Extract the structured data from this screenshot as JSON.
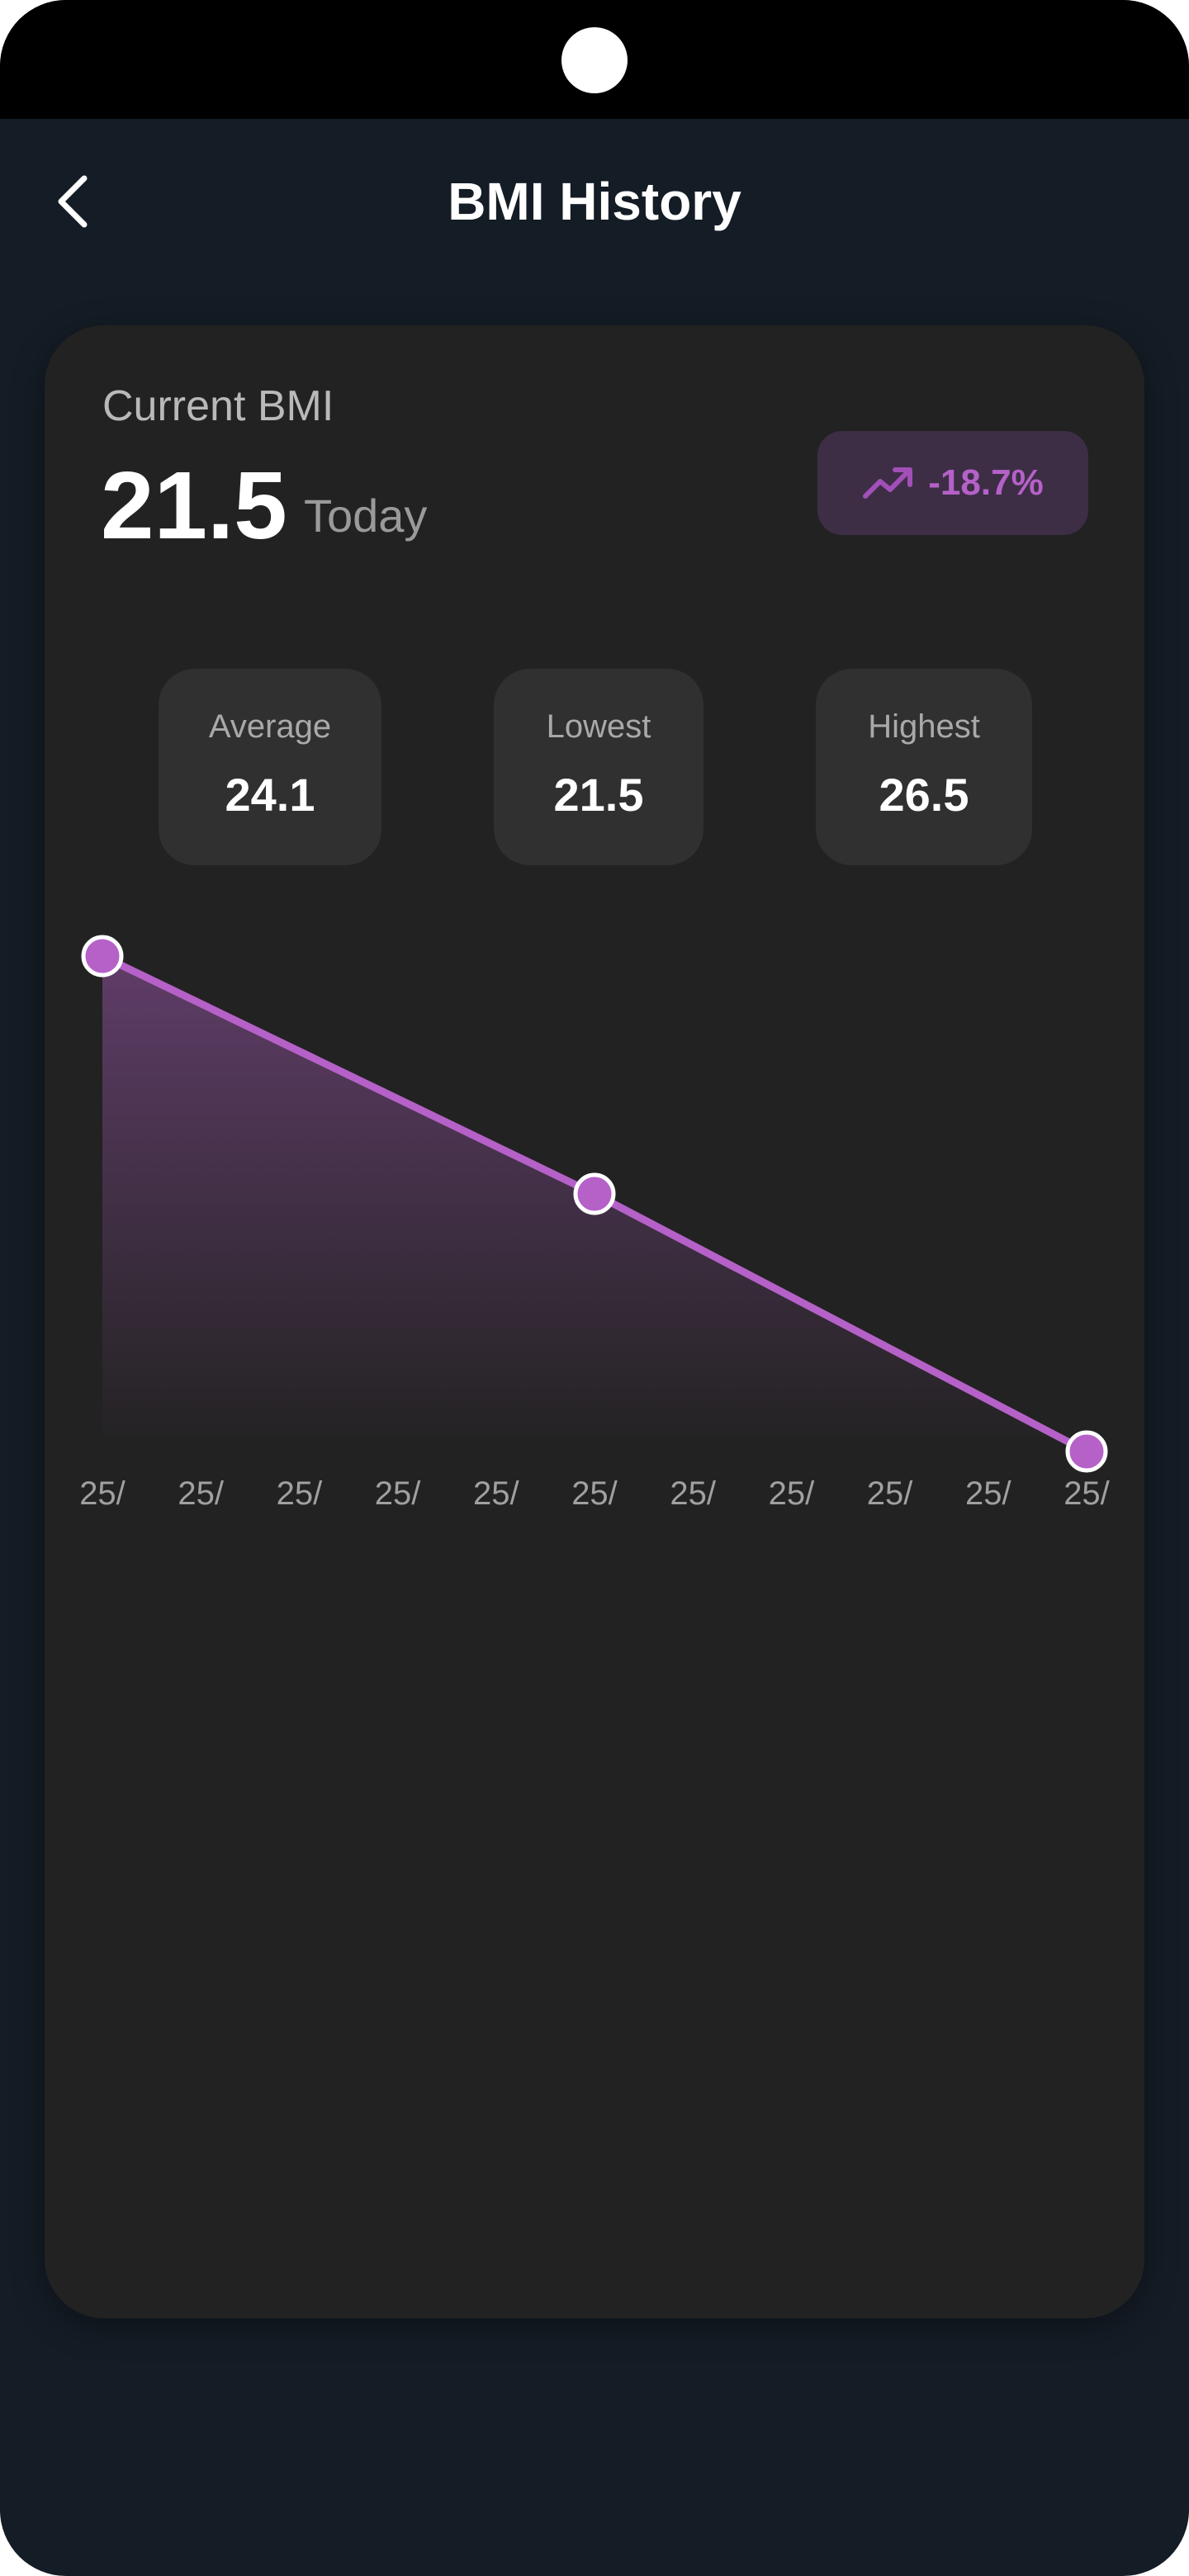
{
  "header": {
    "title": "BMI History",
    "back_icon": "chevron-left-icon"
  },
  "summary": {
    "label": "Current BMI",
    "value": "21.5",
    "period": "Today",
    "change": {
      "text": "-18.7%",
      "icon": "trending-up-icon"
    }
  },
  "stats": [
    {
      "label": "Average",
      "value": "24.1"
    },
    {
      "label": "Lowest",
      "value": "21.5"
    },
    {
      "label": "Highest",
      "value": "26.5"
    }
  ],
  "chart_data": {
    "type": "area",
    "x_ticks": [
      "25/",
      "25/",
      "25/",
      "25/",
      "25/",
      "25/",
      "25/",
      "25/",
      "25/",
      "25/",
      "25/"
    ],
    "points": [
      {
        "x_index": 0,
        "y": 26.5
      },
      {
        "x_index": 5,
        "y": 24.1
      },
      {
        "x_index": 10,
        "y": 21.5
      }
    ],
    "ylim": [
      21.5,
      26.5
    ],
    "grid": false,
    "legend": "none"
  },
  "colors": {
    "background": "#141c25",
    "card": "#222222",
    "stat_box": "#303030",
    "accent": "#b561c8",
    "badge_bg": "#3d2e46",
    "text_primary": "#ffffff",
    "text_secondary": "#a9a9a9"
  }
}
